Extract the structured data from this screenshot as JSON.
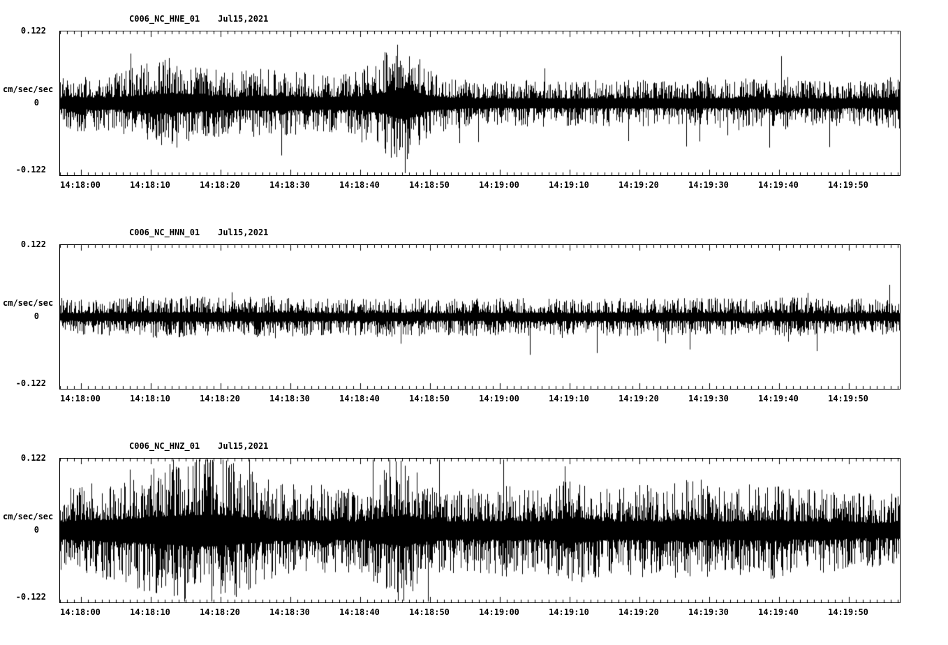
{
  "page": {
    "background": "#ffffff",
    "trace_color": "#000000"
  },
  "chart_data": [
    {
      "type": "line",
      "station": "C006_NC_HNE_01",
      "date": "Jul15,2021",
      "ylabel": "cm/sec/sec",
      "ylim": [
        -0.122,
        0.122
      ],
      "ytick_labels": {
        "top": "0.122",
        "zero": "0",
        "bottom": "-0.122"
      },
      "x_tick_labels": [
        "14:18:00",
        "14:18:10",
        "14:18:20",
        "14:18:30",
        "14:18:40",
        "14:18:50",
        "14:19:00",
        "14:19:10",
        "14:19:20",
        "14:19:30",
        "14:19:40",
        "14:19:50"
      ],
      "x_seconds_per_pixel": 0.1,
      "grid": false,
      "envelope_units": "cm/sec/sec",
      "envelope_abs": [
        0.03,
        0.034,
        0.032,
        0.038,
        0.048,
        0.055,
        0.05,
        0.042,
        0.036,
        0.04,
        0.042,
        0.038,
        0.034,
        0.036,
        0.04,
        0.058,
        0.085,
        0.045,
        0.032,
        0.028,
        0.027,
        0.026,
        0.028,
        0.027,
        0.026,
        0.028,
        0.027,
        0.028,
        0.026,
        0.028,
        0.027,
        0.028,
        0.03,
        0.028,
        0.032,
        0.028,
        0.028,
        0.026,
        0.028,
        0.034
      ]
    },
    {
      "type": "line",
      "station": "C006_NC_HNN_01",
      "date": "Jul15,2021",
      "ylabel": "cm/sec/sec",
      "ylim": [
        -0.122,
        0.122
      ],
      "ytick_labels": {
        "top": "0.122",
        "zero": "0",
        "bottom": "-0.122"
      },
      "x_tick_labels": [
        "14:18:00",
        "14:18:10",
        "14:18:20",
        "14:18:30",
        "14:18:40",
        "14:18:50",
        "14:19:00",
        "14:19:10",
        "14:19:20",
        "14:19:30",
        "14:19:40",
        "14:19:50"
      ],
      "x_seconds_per_pixel": 0.1,
      "grid": false,
      "envelope_units": "cm/sec/sec",
      "envelope_abs": [
        0.02,
        0.021,
        0.022,
        0.023,
        0.025,
        0.024,
        0.026,
        0.023,
        0.022,
        0.024,
        0.026,
        0.024,
        0.022,
        0.021,
        0.022,
        0.024,
        0.023,
        0.022,
        0.021,
        0.022,
        0.023,
        0.022,
        0.024,
        0.022,
        0.021,
        0.023,
        0.024,
        0.022,
        0.021,
        0.022,
        0.023,
        0.022,
        0.021,
        0.022,
        0.023,
        0.022,
        0.021,
        0.022,
        0.021,
        0.022
      ]
    },
    {
      "type": "line",
      "station": "C006_NC_HNZ_01",
      "date": "Jul15,2021",
      "ylabel": "cm/sec/sec",
      "ylim": [
        -0.122,
        0.122
      ],
      "ytick_labels": {
        "top": "0.122",
        "zero": "0",
        "bottom": "-0.122"
      },
      "x_tick_labels": [
        "14:18:00",
        "14:18:10",
        "14:18:20",
        "14:18:30",
        "14:18:40",
        "14:18:50",
        "14:19:00",
        "14:19:10",
        "14:19:20",
        "14:19:30",
        "14:19:40",
        "14:19:50"
      ],
      "x_seconds_per_pixel": 0.1,
      "grid": false,
      "envelope_units": "cm/sec/sec",
      "envelope_abs": [
        0.048,
        0.055,
        0.058,
        0.065,
        0.072,
        0.08,
        0.085,
        0.09,
        0.08,
        0.068,
        0.058,
        0.055,
        0.058,
        0.052,
        0.05,
        0.07,
        0.088,
        0.058,
        0.052,
        0.05,
        0.052,
        0.055,
        0.05,
        0.056,
        0.068,
        0.055,
        0.05,
        0.055,
        0.05,
        0.06,
        0.055,
        0.05,
        0.054,
        0.058,
        0.05,
        0.052,
        0.048,
        0.045,
        0.042,
        0.046
      ]
    }
  ]
}
